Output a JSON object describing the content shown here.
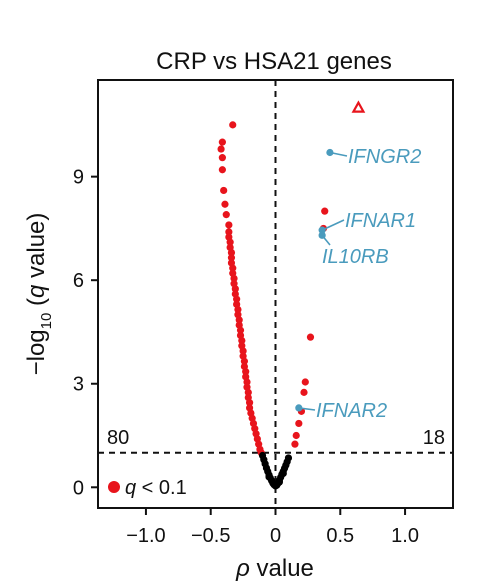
{
  "chart_data": {
    "type": "scatter",
    "title": "CRP vs HSA21 genes",
    "xlabel": "ρ value",
    "ylabel": "−log10 (q value)",
    "ylabel_parts": {
      "prefix": "−log",
      "sub": "10",
      "open": " (",
      "q": "q",
      "rest": " value)"
    },
    "xlabel_parts": {
      "rho": "ρ",
      "rest": " value"
    },
    "xlim": [
      -1.37,
      1.37
    ],
    "ylim": [
      -0.6,
      11.8
    ],
    "xticks": [
      -1.0,
      -0.5,
      0,
      0.5,
      1.0
    ],
    "xtick_labels": [
      "−1.0",
      "−0.5",
      "0",
      "0.5",
      "1.0"
    ],
    "yticks": [
      0,
      3,
      6,
      9
    ],
    "ytick_labels": [
      "0",
      "3",
      "6",
      "9"
    ],
    "significance_threshold": 1.0,
    "zero_line_x": 0,
    "counts": {
      "left": "80",
      "right": "18"
    },
    "legend": {
      "marker_label_q": "q",
      "marker_label_rest": " < 0.1",
      "position": "bottom-left"
    },
    "colors": {
      "significant": "#e8141c",
      "nonsignificant": "#000000",
      "highlight": "#4a9bbd",
      "triangle": "#e8141c"
    },
    "series": [
      {
        "name": "q < 0.1",
        "color": "#e8141c",
        "points": [
          [
            -0.33,
            10.5
          ],
          [
            -0.41,
            10.0
          ],
          [
            -0.42,
            9.8
          ],
          [
            -0.41,
            9.55
          ],
          [
            -0.41,
            9.2
          ],
          [
            -0.4,
            8.6
          ],
          [
            -0.39,
            8.2
          ],
          [
            -0.38,
            7.9
          ],
          [
            -0.36,
            7.6
          ],
          [
            -0.36,
            7.4
          ],
          [
            -0.36,
            7.25
          ],
          [
            -0.35,
            7.1
          ],
          [
            -0.35,
            6.95
          ],
          [
            -0.34,
            6.8
          ],
          [
            -0.34,
            6.65
          ],
          [
            -0.34,
            6.5
          ],
          [
            -0.33,
            6.35
          ],
          [
            -0.33,
            6.2
          ],
          [
            -0.32,
            6.05
          ],
          [
            -0.32,
            5.9
          ],
          [
            -0.31,
            5.75
          ],
          [
            -0.31,
            5.6
          ],
          [
            -0.3,
            5.45
          ],
          [
            -0.3,
            5.3
          ],
          [
            -0.29,
            5.15
          ],
          [
            -0.29,
            5.0
          ],
          [
            -0.28,
            4.85
          ],
          [
            -0.28,
            4.7
          ],
          [
            -0.27,
            4.55
          ],
          [
            -0.27,
            4.4
          ],
          [
            -0.26,
            4.25
          ],
          [
            -0.26,
            4.1
          ],
          [
            -0.25,
            3.95
          ],
          [
            -0.25,
            3.8
          ],
          [
            -0.24,
            3.65
          ],
          [
            -0.24,
            3.5
          ],
          [
            -0.23,
            3.35
          ],
          [
            -0.23,
            3.2
          ],
          [
            -0.22,
            3.05
          ],
          [
            -0.22,
            2.9
          ],
          [
            -0.21,
            2.75
          ],
          [
            -0.21,
            2.6
          ],
          [
            -0.2,
            2.45
          ],
          [
            -0.2,
            2.3
          ],
          [
            -0.19,
            2.15
          ],
          [
            -0.18,
            2.0
          ],
          [
            -0.17,
            1.85
          ],
          [
            -0.16,
            1.7
          ],
          [
            -0.15,
            1.55
          ],
          [
            -0.14,
            1.4
          ],
          [
            -0.13,
            1.25
          ],
          [
            -0.12,
            1.1
          ],
          [
            -0.11,
            1.0
          ],
          [
            0.15,
            1.25
          ],
          [
            0.16,
            1.5
          ],
          [
            0.18,
            1.85
          ],
          [
            0.2,
            2.2
          ],
          [
            0.22,
            2.75
          ],
          [
            0.23,
            3.05
          ],
          [
            0.27,
            4.35
          ],
          [
            0.37,
            7.5
          ],
          [
            0.38,
            8.0
          ]
        ]
      },
      {
        "name": "",
        "color": "#000000",
        "points": [
          [
            -0.1,
            0.92
          ],
          [
            -0.09,
            0.8
          ],
          [
            -0.08,
            0.68
          ],
          [
            -0.07,
            0.56
          ],
          [
            -0.06,
            0.46
          ],
          [
            -0.05,
            0.36
          ],
          [
            -0.04,
            0.27
          ],
          [
            -0.03,
            0.19
          ],
          [
            -0.02,
            0.12
          ],
          [
            -0.01,
            0.07
          ],
          [
            0.0,
            0.04
          ],
          [
            0.01,
            0.06
          ],
          [
            0.02,
            0.12
          ],
          [
            0.03,
            0.2
          ],
          [
            0.04,
            0.29
          ],
          [
            0.05,
            0.38
          ],
          [
            0.06,
            0.46
          ],
          [
            0.07,
            0.55
          ],
          [
            0.08,
            0.64
          ],
          [
            0.09,
            0.74
          ],
          [
            0.1,
            0.85
          ],
          [
            -0.05,
            0.3
          ],
          [
            0.03,
            0.15
          ],
          [
            0.06,
            0.4
          ]
        ]
      }
    ],
    "triangle_point": [
      0.64,
      11.0
    ],
    "highlights": [
      {
        "gene": "IFNGR2",
        "x": 0.42,
        "y": 9.7
      },
      {
        "gene": "IFNAR1",
        "x": 0.36,
        "y": 7.45
      },
      {
        "gene": "IL10RB",
        "x": 0.36,
        "y": 7.3
      },
      {
        "gene": "IFNAR2",
        "x": 0.18,
        "y": 2.3
      }
    ]
  }
}
